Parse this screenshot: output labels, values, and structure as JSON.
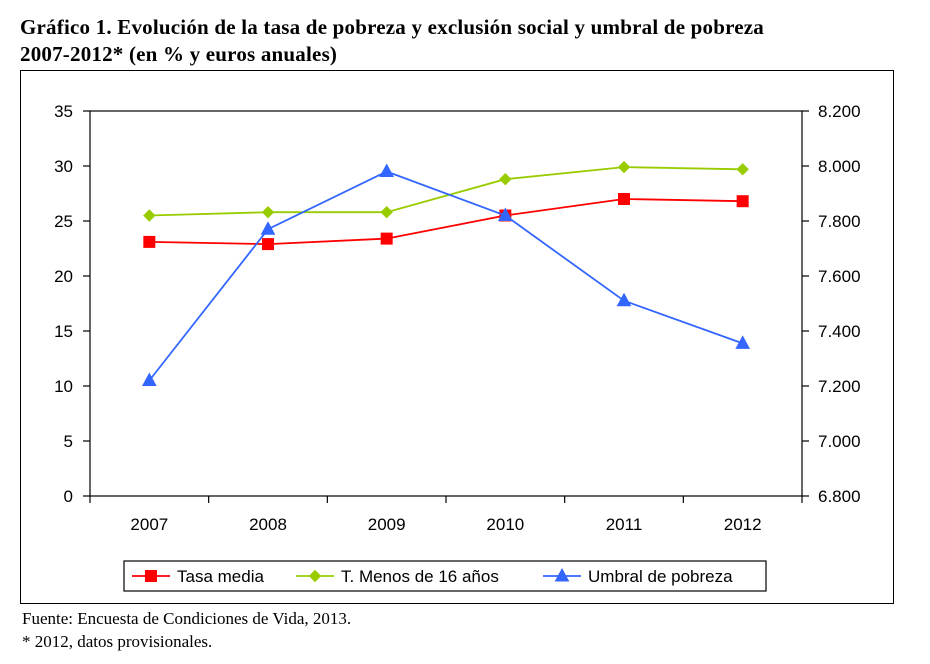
{
  "title_line1": "Gráfico 1. Evolución de la tasa de pobreza y exclusión social y umbral de pobreza",
  "title_line2": "2007-2012* (en % y euros anuales)",
  "notes": {
    "source": "Fuente: Encuesta de Condiciones de Vida, 2013.",
    "footnote": "* 2012, datos provisionales."
  },
  "chart_data": {
    "type": "line",
    "title": "",
    "xlabel": "",
    "ylabel": "",
    "categories": [
      "2007",
      "2008",
      "2009",
      "2010",
      "2011",
      "2012"
    ],
    "y_left": {
      "range": [
        0,
        35
      ],
      "ticks": [
        0,
        5,
        10,
        15,
        20,
        25,
        30,
        35
      ],
      "tick_labels": [
        "0",
        "5",
        "10",
        "15",
        "20",
        "25",
        "30",
        "35"
      ]
    },
    "y_right": {
      "range": [
        6800,
        8200
      ],
      "ticks": [
        6800,
        7000,
        7200,
        7400,
        7600,
        7800,
        8000,
        8200
      ],
      "tick_labels": [
        "6.800",
        "7.000",
        "7.200",
        "7.400",
        "7.600",
        "7.800",
        "8.000",
        "8.200"
      ]
    },
    "grid": false,
    "legend_position": "bottom",
    "series": [
      {
        "name": "Tasa media",
        "axis": "left",
        "color": "#ff0000",
        "marker": "square",
        "values": [
          23.1,
          22.9,
          23.4,
          25.5,
          27.0,
          26.8
        ]
      },
      {
        "name": "T. Menos de 16 años",
        "axis": "left",
        "color": "#99cc00",
        "marker": "diamond",
        "values": [
          25.5,
          25.8,
          25.8,
          28.8,
          29.9,
          29.7
        ]
      },
      {
        "name": "Umbral de pobreza",
        "axis": "right",
        "color": "#3366ff",
        "marker": "triangle",
        "values": [
          7220,
          7770,
          7980,
          7820,
          7510,
          7355
        ]
      }
    ]
  }
}
